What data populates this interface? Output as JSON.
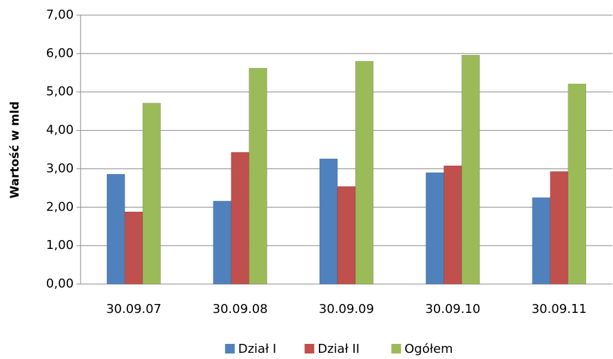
{
  "chart_data": {
    "type": "bar",
    "y_label": "Wartość w mld",
    "categories": [
      "30.09.07",
      "30.09.08",
      "30.09.09",
      "30.09.10",
      "30.09.11"
    ],
    "series": [
      {
        "name": "Dział I",
        "color": "#4f81bd",
        "values": [
          2.86,
          2.16,
          3.26,
          2.9,
          2.25
        ]
      },
      {
        "name": "Dział II",
        "color": "#c0504d",
        "values": [
          1.88,
          3.43,
          2.54,
          3.08,
          2.93
        ]
      },
      {
        "name": "Ogółem",
        "color": "#9bbb59",
        "values": [
          4.71,
          5.62,
          5.8,
          5.96,
          5.21
        ]
      }
    ],
    "ylim": [
      0,
      7
    ],
    "yticks": [
      {
        "value": 0,
        "label": "0,00"
      },
      {
        "value": 1,
        "label": "1,00"
      },
      {
        "value": 2,
        "label": "2,00"
      },
      {
        "value": 3,
        "label": "3,00"
      },
      {
        "value": 4,
        "label": "4,00"
      },
      {
        "value": 5,
        "label": "5,00"
      },
      {
        "value": 6,
        "label": "6,00"
      },
      {
        "value": 7,
        "label": "7,00"
      }
    ],
    "grid": true
  }
}
